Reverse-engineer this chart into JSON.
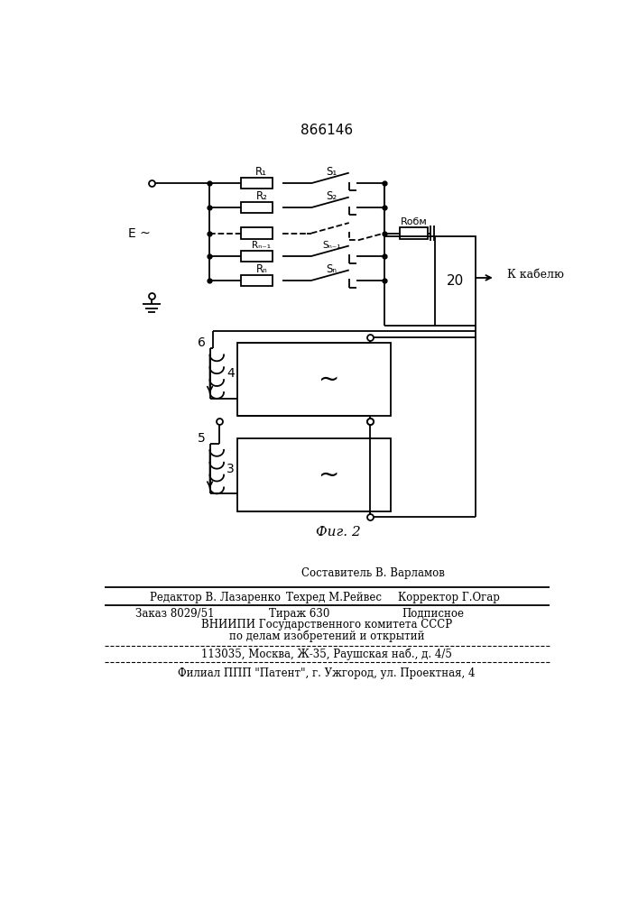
{
  "title": "866146",
  "fig_label": "Фиг. 2",
  "background": "#ffffff",
  "line_color": "#000000",
  "text_color": "#000000",
  "footer": {
    "line1": "Составитель В. Варламов",
    "line2_ed": "Редактор В. Лазаренко",
    "line2_tech": "Техред М.Рейвес",
    "line2_corr": "Корректор Г.Огар",
    "line3_order": "Заказ 8029/51",
    "line3_tir": "Тираж 630",
    "line3_sub": "Подписное",
    "line4": "ВНИИПИ Государственного комитета СССР",
    "line5": "по делам изобретений и открытий",
    "line6": "113035, Москва, Ж-35, Раушская наб., д. 4/5",
    "line7": "Филиал ППП \"Патент\", г. Ужгород, ул. Проектная, 4"
  }
}
